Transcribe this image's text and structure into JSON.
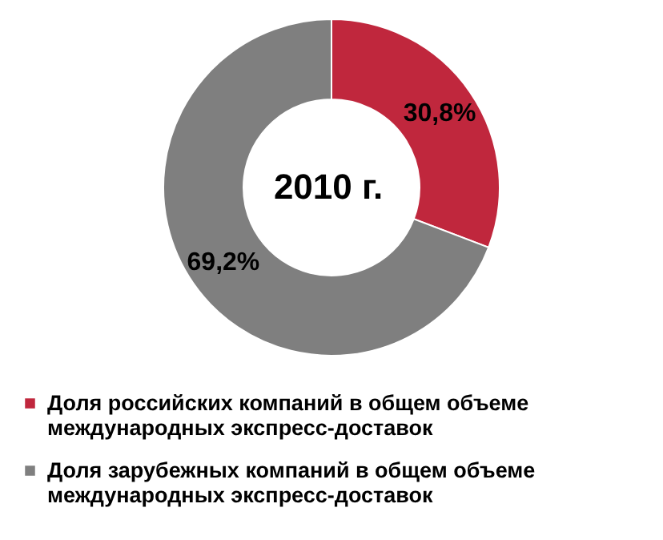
{
  "chart_data": {
    "type": "donut",
    "categories": [
      "Доля российских компаний в общем объеме международных экспресс-доставок",
      "Доля зарубежных компаний в общем объеме международных экспресс-доставок"
    ],
    "values": [
      30.8,
      69.2
    ],
    "colors": [
      "#c0273d",
      "#7f7f7f"
    ],
    "value_labels": [
      "30,8%",
      "69,2%"
    ],
    "annotations": [
      "2010 г."
    ],
    "legend": "bottom"
  }
}
